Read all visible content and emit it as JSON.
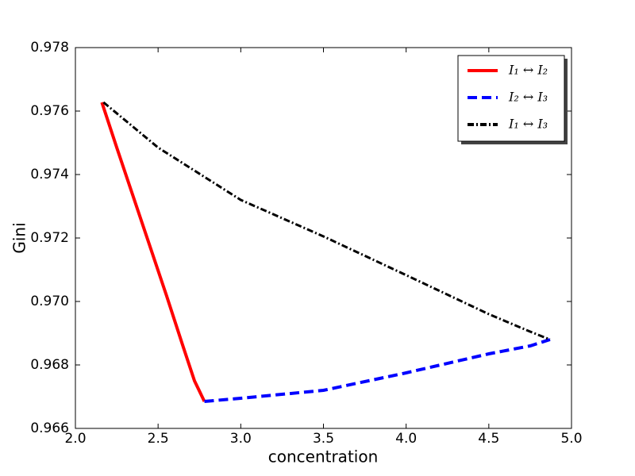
{
  "chart_data": {
    "type": "line",
    "xlabel": "concentration",
    "ylabel": "Gini",
    "xlim": [
      2,
      5
    ],
    "xticks": [
      {
        "value": 2,
        "label": "2.0"
      },
      {
        "value": 2.5,
        "label": "2.5"
      },
      {
        "value": 3,
        "label": "3.0"
      },
      {
        "value": 3.5,
        "label": "3.5"
      },
      {
        "value": 4,
        "label": "4.0"
      },
      {
        "value": 4.5,
        "label": "4.5"
      },
      {
        "value": 5,
        "label": "5.0"
      }
    ],
    "ylim": [
      0.966,
      0.978
    ],
    "yticks": [
      0.966,
      0.968,
      {
        "value": 0.97,
        "label": "0.970"
      },
      0.972,
      0.974,
      0.976,
      0.978
    ],
    "legend": "upper right",
    "series": [
      {
        "name": "I₁ ↔ I₂",
        "color": "#ff0000",
        "style": "solid",
        "x": [
          2.16,
          2.25,
          2.35,
          2.45,
          2.55,
          2.65,
          2.72,
          2.78
        ],
        "values": [
          0.976275,
          0.97485,
          0.9733,
          0.97175,
          0.9702,
          0.9686,
          0.9675,
          0.96685
        ]
      },
      {
        "name": "I₂ ↔ I₃",
        "color": "#0000ff",
        "style": "dashed",
        "x": [
          2.78,
          3.0,
          3.5,
          4.0,
          4.5,
          4.75,
          4.87
        ],
        "values": [
          0.96685,
          0.96695,
          0.9672,
          0.96775,
          0.96835,
          0.9686,
          0.9688
        ]
      },
      {
        "name": "I₁ ↔ I₃",
        "color": "#000000",
        "style": "dashdot",
        "x": [
          2.17,
          2.5,
          3.0,
          3.5,
          4.0,
          4.5,
          4.75,
          4.87
        ],
        "values": [
          0.976275,
          0.97485,
          0.9732,
          0.97205,
          0.97083,
          0.9696,
          0.96905,
          0.9688
        ]
      }
    ]
  }
}
